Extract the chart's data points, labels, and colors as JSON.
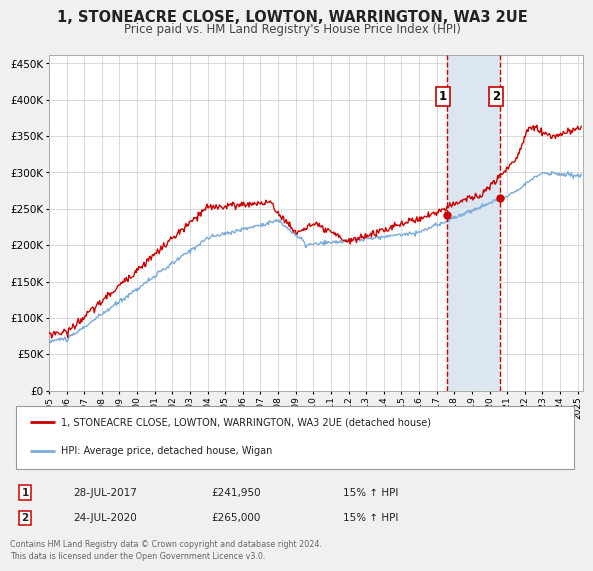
{
  "title": "1, STONEACRE CLOSE, LOWTON, WARRINGTON, WA3 2UE",
  "subtitle": "Price paid vs. HM Land Registry's House Price Index (HPI)",
  "title_fontsize": 10.5,
  "subtitle_fontsize": 8.5,
  "ylabel_ticks": [
    "£0",
    "£50K",
    "£100K",
    "£150K",
    "£200K",
    "£250K",
    "£300K",
    "£350K",
    "£400K",
    "£450K"
  ],
  "ytick_vals": [
    0,
    50000,
    100000,
    150000,
    200000,
    250000,
    300000,
    350000,
    400000,
    450000
  ],
  "ylim": [
    0,
    462000
  ],
  "xlim_start": 1995.0,
  "xlim_end": 2025.3,
  "xtick_years": [
    1995,
    1996,
    1997,
    1998,
    1999,
    2000,
    2001,
    2002,
    2003,
    2004,
    2005,
    2006,
    2007,
    2008,
    2009,
    2010,
    2011,
    2012,
    2013,
    2014,
    2015,
    2016,
    2017,
    2018,
    2019,
    2020,
    2021,
    2022,
    2023,
    2024,
    2025
  ],
  "marker1_x": 2017.57,
  "marker1_y": 241950,
  "marker2_x": 2020.57,
  "marker2_y": 265000,
  "vline1_x": 2017.57,
  "vline2_x": 2020.57,
  "shade_x1": 2017.57,
  "shade_x2": 2020.57,
  "shade_color": "#dce6f1",
  "red_line_color": "#cc0000",
  "blue_line_color": "#7aabdb",
  "marker_color": "#cc0000",
  "vline_color": "#cc0000",
  "legend_label_red": "1, STONEACRE CLOSE, LOWTON, WARRINGTON, WA3 2UE (detached house)",
  "legend_label_blue": "HPI: Average price, detached house, Wigan",
  "annotation1_label": "1",
  "annotation2_label": "2",
  "ann1_date": "28-JUL-2017",
  "ann1_price": "£241,950",
  "ann1_pct": "15% ↑ HPI",
  "ann2_date": "24-JUL-2020",
  "ann2_price": "£265,000",
  "ann2_pct": "15% ↑ HPI",
  "footnote1": "Contains HM Land Registry data © Crown copyright and database right 2024.",
  "footnote2": "This data is licensed under the Open Government Licence v3.0.",
  "bg_color": "#f0f0f0",
  "plot_bg_color": "#ffffff",
  "grid_color": "#cccccc"
}
